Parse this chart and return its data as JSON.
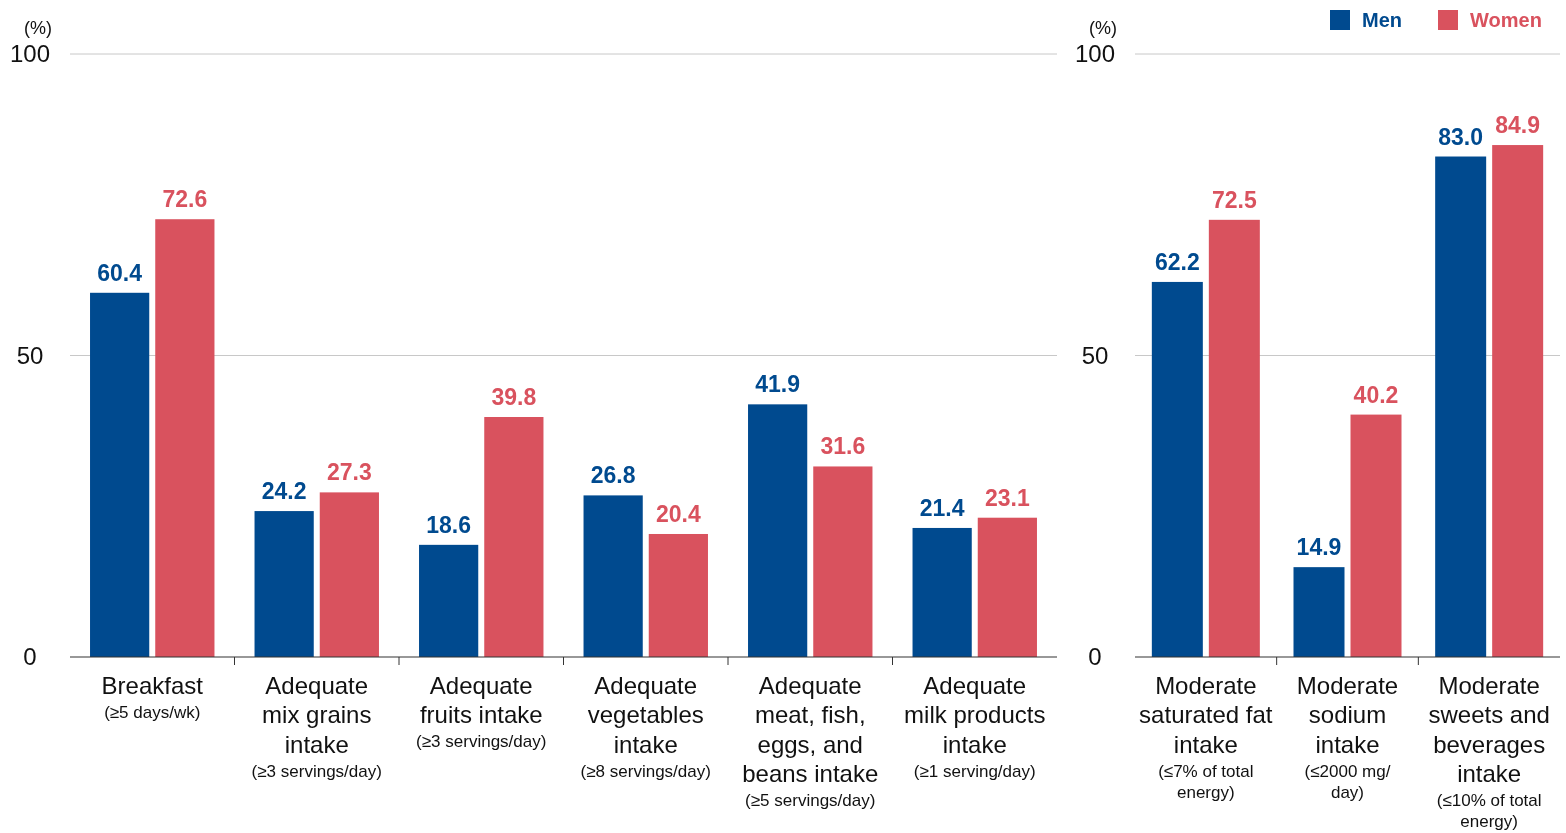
{
  "chart_data": [
    {
      "type": "bar",
      "ylabel": "(%)",
      "categories": [
        "Breakfast\n(≥5 days/wk)",
        "Adequate\nmix grains\nintake\n(≥3 servings/day)",
        "Adequate\nfruits intake\n(≥3 servings/day)",
        "Adequate\nvegetables\nintake\n(≥8 servings/day)",
        "Adequate\nmeat, fish,\neggs, and\nbeans intake\n(≥5 servings/day)",
        "Adequate\nmilk products\nintake\n(≥1 serving/day)"
      ],
      "series": [
        {
          "color": "#004a8f",
          "values": [
            60.4,
            24.2,
            18.6,
            26.8,
            41.9,
            21.4
          ]
        },
        {
          "color": "#d9525e",
          "values": [
            72.6,
            27.3,
            39.8,
            20.4,
            31.6,
            23.1
          ]
        }
      ],
      "ylim": [
        0,
        100
      ],
      "yticks": [
        0,
        50,
        100
      ],
      "grid": "y",
      "data_labels": true
    },
    {
      "type": "bar",
      "ylabel": "(%)",
      "categories": [
        "Moderate\nsaturated fat\nintake\n(≤7% of total\nenergy)",
        "Moderate\nsodium\nintake\n(≤2000 mg/\nday)",
        "Moderate\nsweets and\nbeverages\nintake\n(≤10% of total\nenergy)"
      ],
      "series": [
        {
          "name": "Men",
          "color": "#004a8f",
          "values": [
            62.2,
            14.9,
            83.0
          ],
          "value_labels": [
            "62.2",
            "14.9",
            "83.0"
          ]
        },
        {
          "name": "Women",
          "color": "#d9525e",
          "values": [
            72.5,
            40.2,
            84.9
          ],
          "value_labels": [
            "72.5",
            "40.2",
            "84.9"
          ]
        }
      ],
      "ylim": [
        0,
        100
      ],
      "yticks": [
        0,
        50,
        100
      ],
      "grid": "y",
      "legend": "top right"
    }
  ]
}
